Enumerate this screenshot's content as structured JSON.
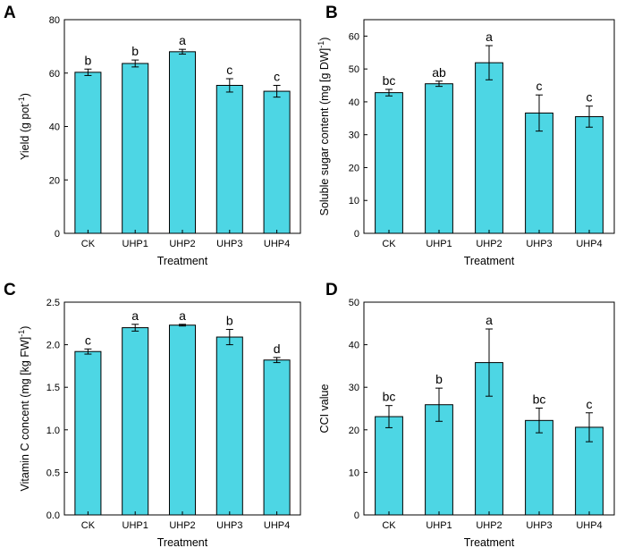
{
  "chart_data": [
    {
      "panel": "A",
      "type": "bar",
      "categories": [
        "CK",
        "UHP1",
        "UHP2",
        "UHP3",
        "UHP4"
      ],
      "values": [
        60.3,
        63.6,
        68.0,
        55.4,
        53.2
      ],
      "errors": [
        1.2,
        1.3,
        0.9,
        2.5,
        2.2
      ],
      "letters": [
        "b",
        "b",
        "a",
        "c",
        "c"
      ],
      "xlabel": "Treatment",
      "ylabel": {
        "main": "Yield (g pot",
        "sup": "-1",
        "tail": ")"
      },
      "ylim": [
        0,
        80
      ],
      "yticks": [
        0,
        20,
        40,
        60,
        80
      ],
      "ytick_labels": [
        "0",
        "20",
        "40",
        "60",
        "80"
      ]
    },
    {
      "panel": "B",
      "type": "bar",
      "categories": [
        "CK",
        "UHP1",
        "UHP2",
        "UHP3",
        "UHP4"
      ],
      "values": [
        42.8,
        45.5,
        51.9,
        36.6,
        35.5
      ],
      "errors": [
        1.0,
        0.8,
        5.2,
        5.5,
        3.2
      ],
      "letters": [
        "bc",
        "ab",
        "a",
        "c",
        "c"
      ],
      "xlabel": "Treatment",
      "ylabel": {
        "main": "Soluble sugar content (mg [g DW]",
        "sup": "-1",
        "tail": ")"
      },
      "ylim": [
        0,
        65
      ],
      "yticks": [
        0,
        10,
        20,
        30,
        40,
        50,
        60
      ],
      "ytick_labels": [
        "0",
        "10",
        "20",
        "30",
        "40",
        "50",
        "60"
      ]
    },
    {
      "panel": "C",
      "type": "bar",
      "categories": [
        "CK",
        "UHP1",
        "UHP2",
        "UHP3",
        "UHP4"
      ],
      "values": [
        1.92,
        2.2,
        2.23,
        2.09,
        1.82
      ],
      "errors": [
        0.03,
        0.04,
        0.01,
        0.09,
        0.03
      ],
      "letters": [
        "c",
        "a",
        "a",
        "b",
        "d"
      ],
      "xlabel": "Treatment",
      "ylabel": {
        "main": "Vitamin C concent (mg [kg FW]",
        "sup": "-1",
        "tail": ")"
      },
      "ylim": [
        0,
        2.5
      ],
      "yticks": [
        0,
        0.5,
        1.0,
        1.5,
        2.0,
        2.5
      ],
      "ytick_labels": [
        "0.0",
        "0.5",
        "1.0",
        "1.5",
        "2.0",
        "2.5"
      ]
    },
    {
      "panel": "D",
      "type": "bar",
      "categories": [
        "CK",
        "UHP1",
        "UHP2",
        "UHP3",
        "UHP4"
      ],
      "values": [
        23.1,
        25.9,
        35.8,
        22.2,
        20.6
      ],
      "errors": [
        2.6,
        3.9,
        7.9,
        2.9,
        3.4
      ],
      "letters": [
        "bc",
        "b",
        "a",
        "bc",
        "c"
      ],
      "xlabel": "Treatment",
      "ylabel": {
        "main": "CCI value",
        "sup": "",
        "tail": ""
      },
      "ylim": [
        0,
        50
      ],
      "yticks": [
        0,
        10,
        20,
        30,
        40,
        50
      ],
      "ytick_labels": [
        "0",
        "10",
        "20",
        "30",
        "40",
        "50"
      ]
    }
  ],
  "colors": {
    "bar_fill": "#4dd6e4",
    "outline": "#000000"
  }
}
